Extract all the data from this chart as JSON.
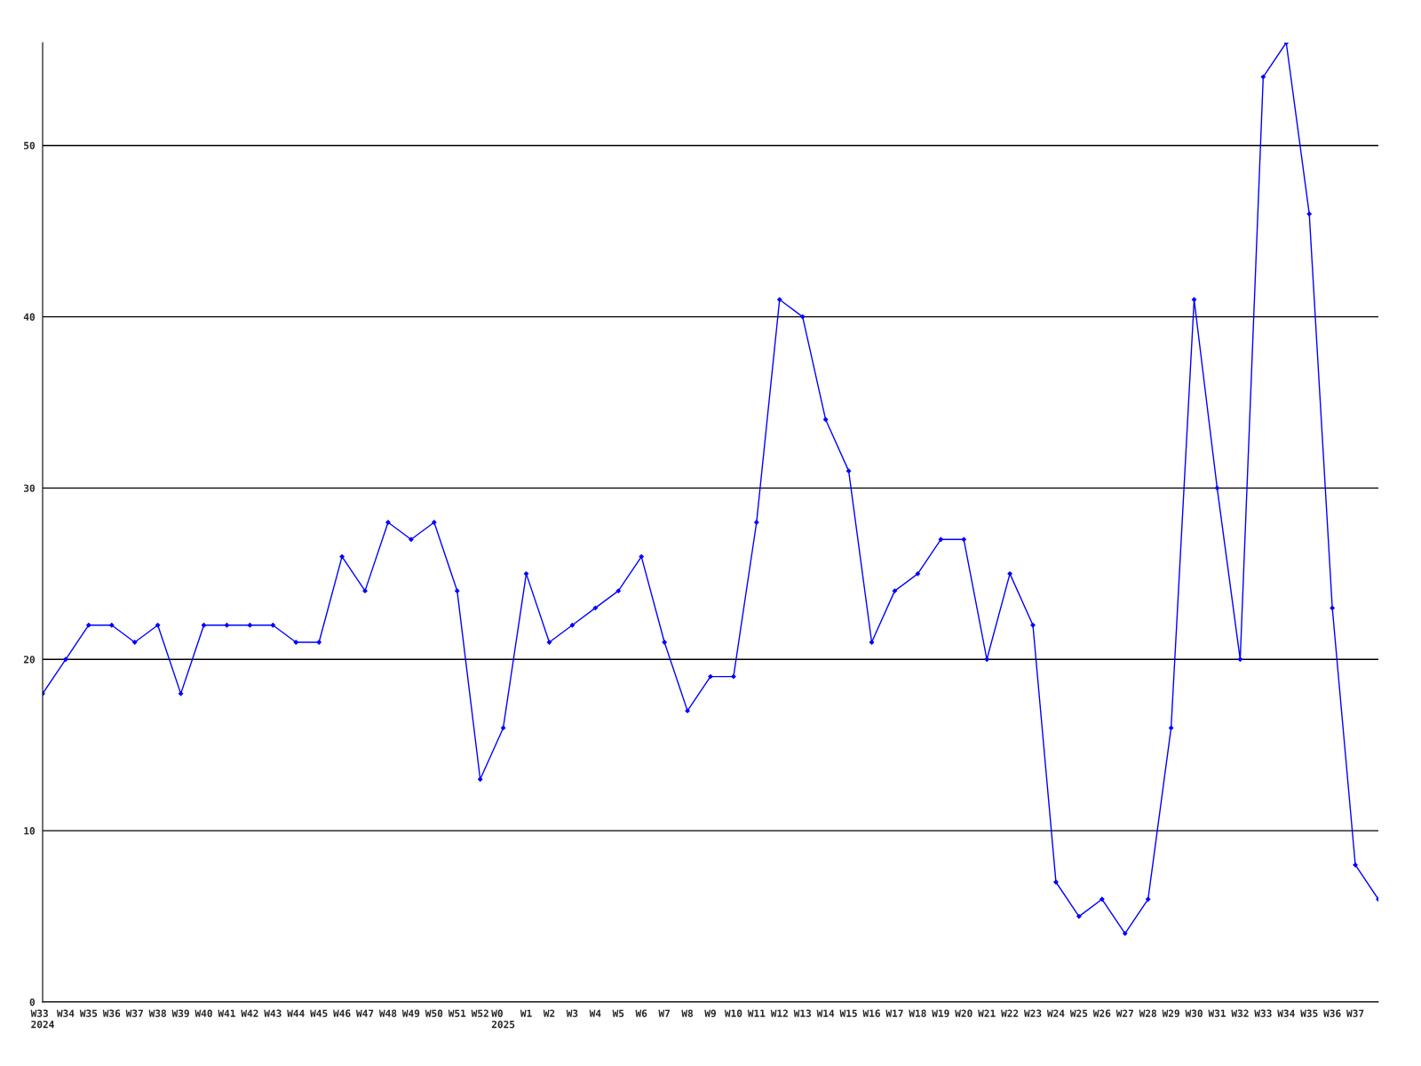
{
  "chart_data": {
    "type": "line",
    "categories": [
      "W33\n2024",
      "W34",
      "W35",
      "W36",
      "W37",
      "W38",
      "W39",
      "W40",
      "W41",
      "W42",
      "W43",
      "W44",
      "W45",
      "W46",
      "W47",
      "W48",
      "W49",
      "W50",
      "W51",
      "W52",
      "W0\n2025",
      "W1",
      "W2",
      "W3",
      "W4",
      "W5",
      "W6",
      "W7",
      "W8",
      "W9",
      "W10",
      "W11",
      "W12",
      "W13",
      "W14",
      "W15",
      "W16",
      "W17",
      "W18",
      "W19",
      "W20",
      "W21",
      "W22",
      "W23",
      "W24",
      "W25",
      "W26",
      "W27",
      "W28",
      "W29",
      "W30",
      "W31",
      "W32",
      "W33",
      "W34",
      "W35",
      "W36",
      "W37",
      null
    ],
    "series": [
      {
        "color": "#0000ff",
        "values": [
          18,
          20,
          22,
          22,
          21,
          22,
          18,
          22,
          22,
          22,
          22,
          21,
          21,
          26,
          24,
          28,
          27,
          28,
          24,
          13,
          16,
          25,
          21,
          22,
          23,
          24,
          26,
          21,
          17,
          19,
          19,
          28,
          41,
          40,
          34,
          31,
          21,
          24,
          25,
          27,
          27,
          20,
          25,
          22,
          7,
          5,
          6,
          4,
          6,
          16,
          41,
          30,
          20,
          54,
          56,
          46,
          23,
          8,
          6
        ]
      }
    ],
    "ylim": [
      0,
      56
    ],
    "yticks": [
      0,
      10,
      20,
      30,
      40,
      50
    ],
    "grid": "y",
    "marker": "diamond",
    "line_style": "solid"
  }
}
